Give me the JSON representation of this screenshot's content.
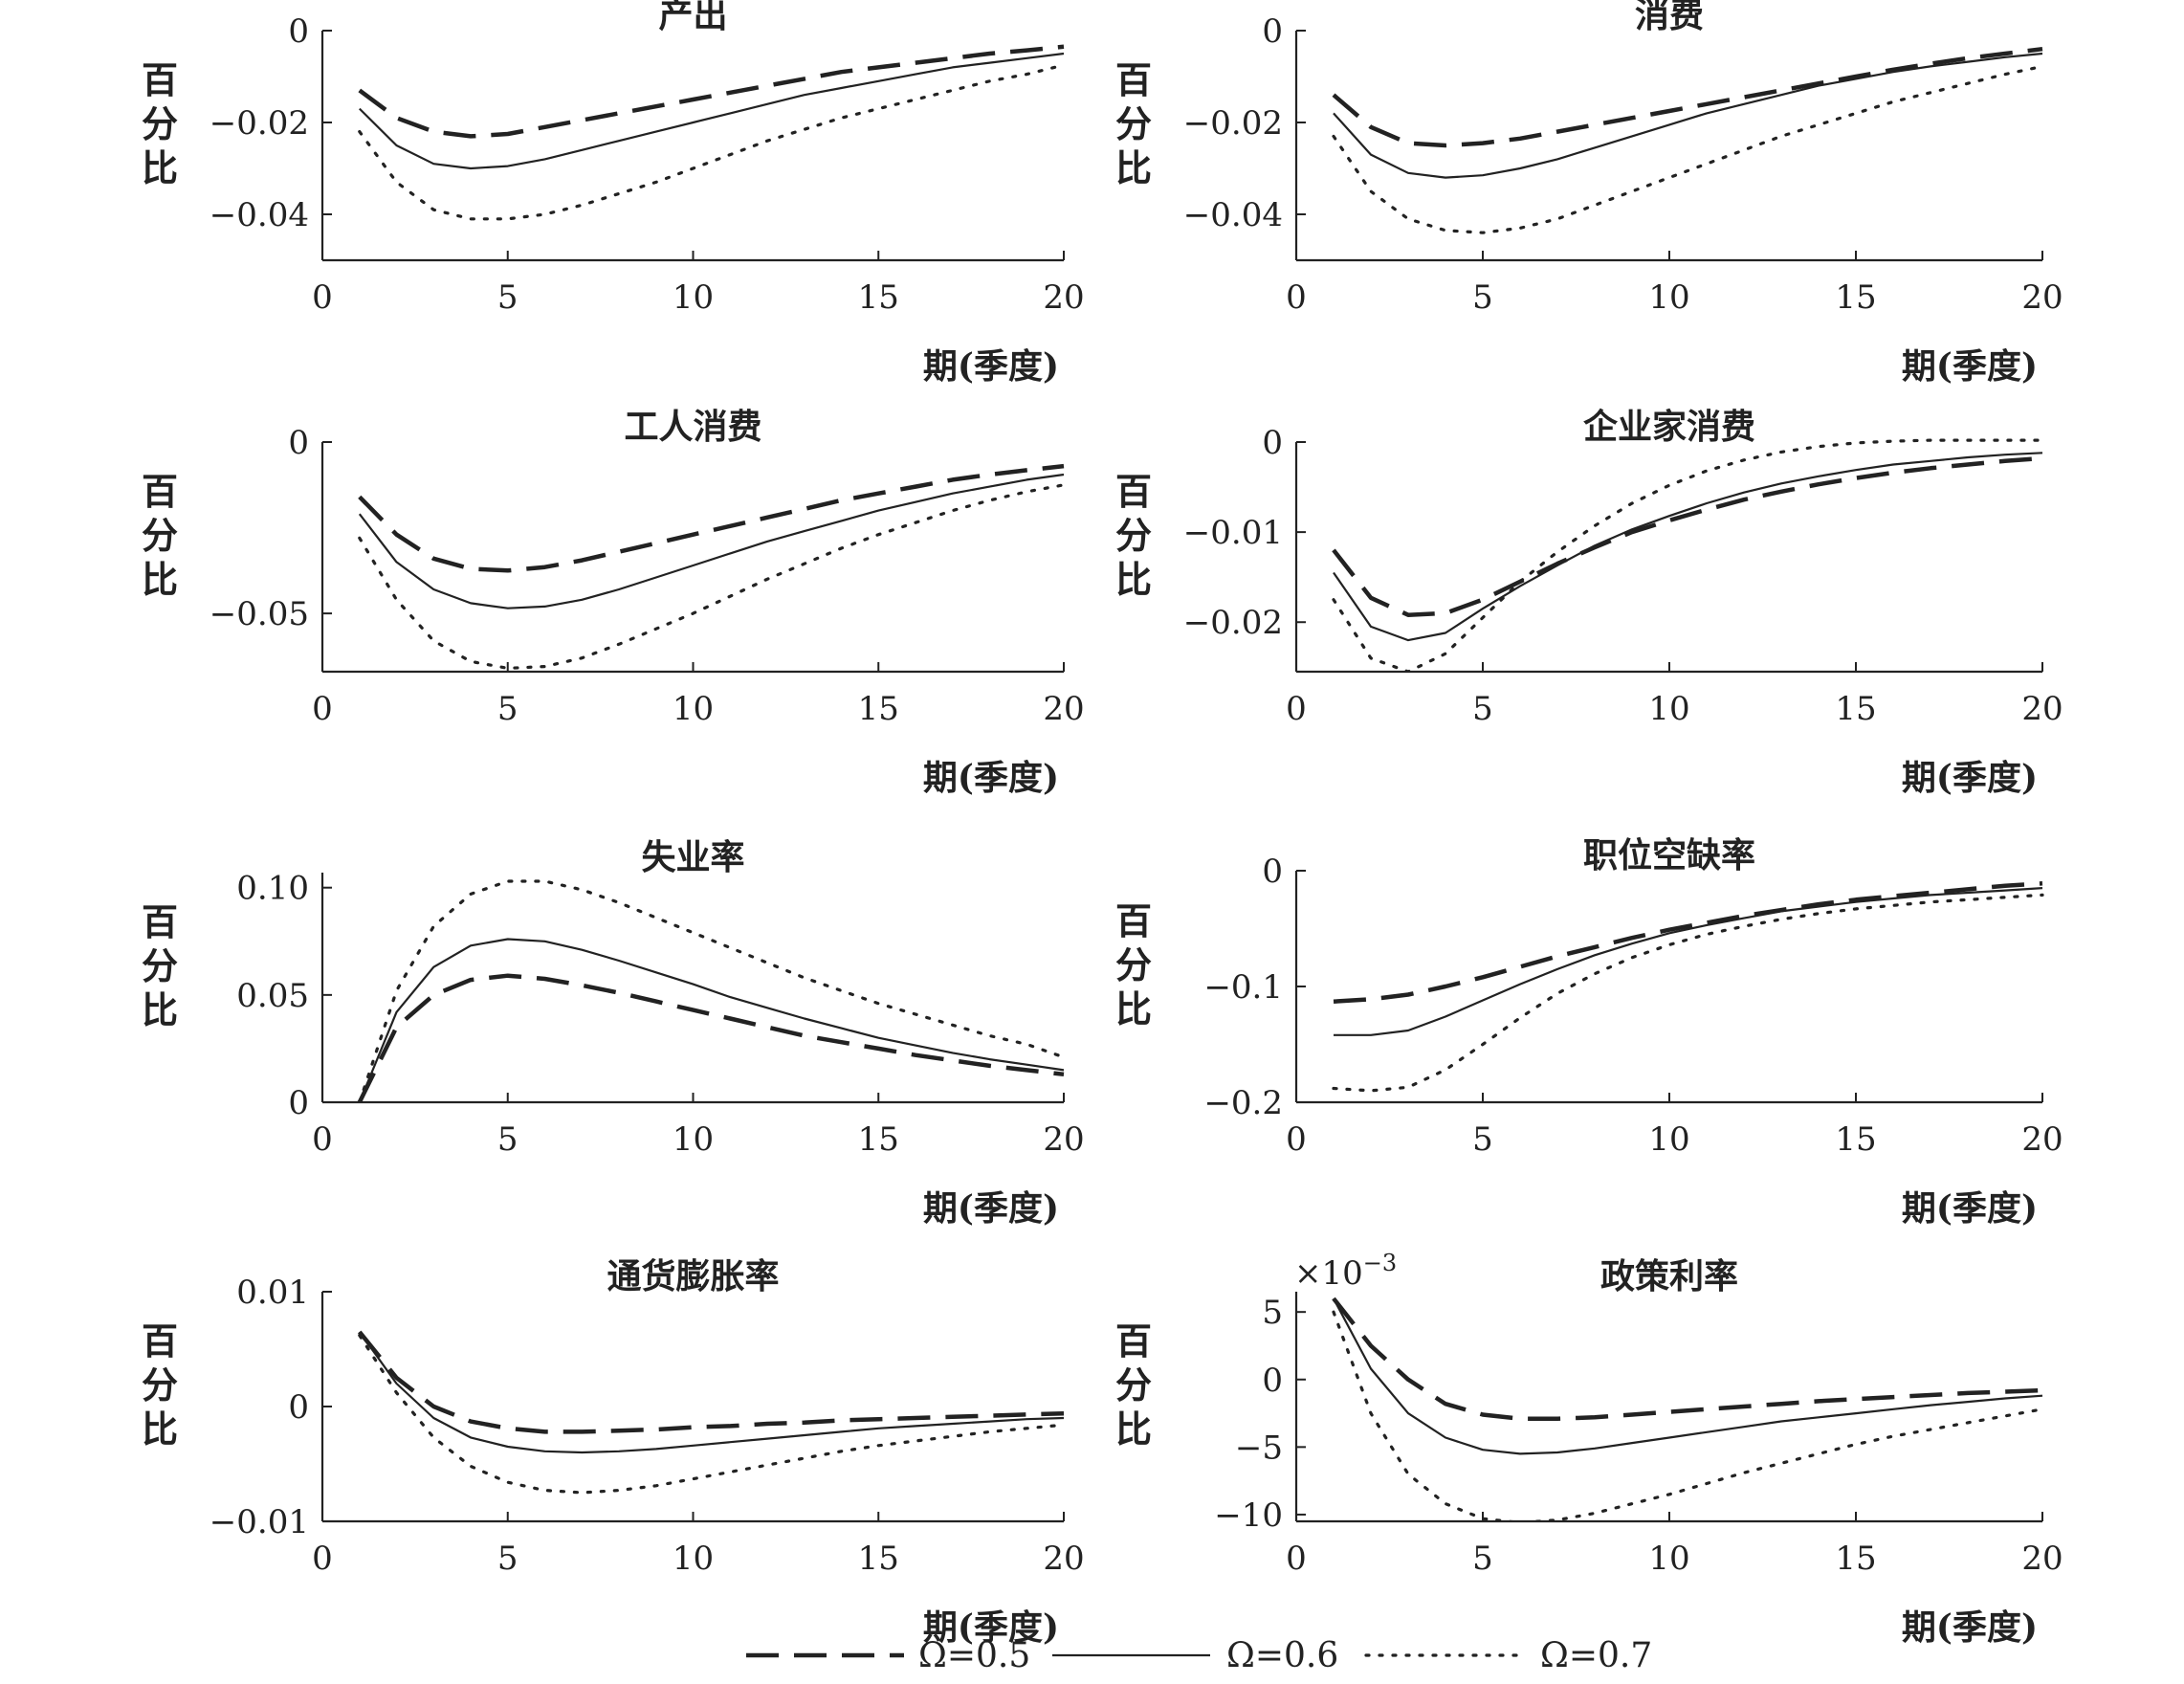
{
  "legend": [
    {
      "name": "Ω=0.5",
      "style": "dashed"
    },
    {
      "name": "Ω=0.6",
      "style": "solid"
    },
    {
      "name": "Ω=0.7",
      "style": "dotted"
    }
  ],
  "line_color": "#222222",
  "chart_data": [
    {
      "type": "line",
      "title": "产出",
      "ylabel": "百分比",
      "xlabel": "期(季度)",
      "xlim": [
        0,
        20
      ],
      "xticks": [
        0,
        5,
        10,
        15,
        20
      ],
      "xtick_labels": [
        "0",
        "5",
        "10",
        "15",
        "20"
      ],
      "ylim": [
        -0.05,
        0
      ],
      "yticks": [
        0,
        -0.02,
        -0.04
      ],
      "ytick_labels": [
        "0",
        "−0.02",
        "−0.04"
      ],
      "ymult": "",
      "x": [
        1,
        2,
        3,
        4,
        5,
        6,
        7,
        8,
        9,
        10,
        11,
        12,
        13,
        14,
        15,
        16,
        17,
        18,
        19,
        20
      ],
      "series": [
        {
          "name": "Ω=0.5",
          "values": [
            -0.013,
            -0.019,
            -0.022,
            -0.023,
            -0.0225,
            -0.021,
            -0.0195,
            -0.018,
            -0.0165,
            -0.015,
            -0.0135,
            -0.012,
            -0.0105,
            -0.009,
            -0.008,
            -0.007,
            -0.006,
            -0.005,
            -0.0043,
            -0.0035
          ]
        },
        {
          "name": "Ω=0.6",
          "values": [
            -0.017,
            -0.025,
            -0.029,
            -0.03,
            -0.0295,
            -0.028,
            -0.026,
            -0.024,
            -0.022,
            -0.02,
            -0.018,
            -0.016,
            -0.014,
            -0.0125,
            -0.011,
            -0.0095,
            -0.008,
            -0.007,
            -0.006,
            -0.005
          ]
        },
        {
          "name": "Ω=0.7",
          "values": [
            -0.022,
            -0.033,
            -0.039,
            -0.041,
            -0.041,
            -0.04,
            -0.038,
            -0.0355,
            -0.033,
            -0.03,
            -0.027,
            -0.024,
            -0.0215,
            -0.019,
            -0.017,
            -0.015,
            -0.013,
            -0.011,
            -0.0095,
            -0.0075
          ]
        }
      ]
    },
    {
      "type": "line",
      "title": "消费",
      "ylabel": "百分比",
      "xlabel": "期(季度)",
      "xlim": [
        0,
        20
      ],
      "xticks": [
        0,
        5,
        10,
        15,
        20
      ],
      "xtick_labels": [
        "0",
        "5",
        "10",
        "15",
        "20"
      ],
      "ylim": [
        -0.05,
        0
      ],
      "yticks": [
        0,
        -0.02,
        -0.04
      ],
      "ytick_labels": [
        "0",
        "−0.02",
        "−0.04"
      ],
      "ymult": "",
      "x": [
        1,
        2,
        3,
        4,
        5,
        6,
        7,
        8,
        9,
        10,
        11,
        12,
        13,
        14,
        15,
        16,
        17,
        18,
        19,
        20
      ],
      "series": [
        {
          "name": "Ω=0.5",
          "values": [
            -0.014,
            -0.021,
            -0.0245,
            -0.025,
            -0.0245,
            -0.0235,
            -0.022,
            -0.0205,
            -0.019,
            -0.0175,
            -0.016,
            -0.0145,
            -0.013,
            -0.0115,
            -0.01,
            -0.0085,
            -0.0072,
            -0.006,
            -0.005,
            -0.004
          ]
        },
        {
          "name": "Ω=0.6",
          "values": [
            -0.018,
            -0.027,
            -0.031,
            -0.032,
            -0.0315,
            -0.03,
            -0.028,
            -0.0255,
            -0.023,
            -0.0205,
            -0.018,
            -0.016,
            -0.014,
            -0.012,
            -0.0105,
            -0.009,
            -0.0078,
            -0.0068,
            -0.0058,
            -0.005
          ]
        },
        {
          "name": "Ω=0.7",
          "values": [
            -0.023,
            -0.035,
            -0.041,
            -0.0435,
            -0.044,
            -0.043,
            -0.041,
            -0.038,
            -0.035,
            -0.032,
            -0.029,
            -0.026,
            -0.023,
            -0.0205,
            -0.018,
            -0.0155,
            -0.0135,
            -0.0115,
            -0.0095,
            -0.0078
          ]
        }
      ]
    },
    {
      "type": "line",
      "title": "工人消费",
      "ylabel": "百分比",
      "xlabel": "期(季度)",
      "xlim": [
        0,
        20
      ],
      "xticks": [
        0,
        5,
        10,
        15,
        20
      ],
      "xtick_labels": [
        "0",
        "5",
        "10",
        "15",
        "20"
      ],
      "ylim": [
        -0.067,
        0
      ],
      "yticks": [
        0,
        -0.05
      ],
      "ytick_labels": [
        "0",
        "−0.05"
      ],
      "ymult": "",
      "x": [
        1,
        2,
        3,
        4,
        5,
        6,
        7,
        8,
        9,
        10,
        11,
        12,
        13,
        14,
        15,
        16,
        17,
        18,
        19,
        20
      ],
      "series": [
        {
          "name": "Ω=0.5",
          "values": [
            -0.016,
            -0.027,
            -0.034,
            -0.037,
            -0.0375,
            -0.0365,
            -0.0345,
            -0.032,
            -0.0295,
            -0.027,
            -0.0245,
            -0.022,
            -0.0195,
            -0.017,
            -0.015,
            -0.013,
            -0.011,
            -0.0095,
            -0.0082,
            -0.007
          ]
        },
        {
          "name": "Ω=0.6",
          "values": [
            -0.021,
            -0.035,
            -0.043,
            -0.047,
            -0.0485,
            -0.048,
            -0.046,
            -0.043,
            -0.0395,
            -0.036,
            -0.0325,
            -0.029,
            -0.026,
            -0.023,
            -0.02,
            -0.0175,
            -0.015,
            -0.013,
            -0.011,
            -0.0095
          ]
        },
        {
          "name": "Ω=0.7",
          "values": [
            -0.028,
            -0.046,
            -0.058,
            -0.064,
            -0.066,
            -0.0655,
            -0.063,
            -0.059,
            -0.0545,
            -0.05,
            -0.045,
            -0.04,
            -0.0355,
            -0.031,
            -0.027,
            -0.0235,
            -0.02,
            -0.017,
            -0.0145,
            -0.0125
          ]
        }
      ]
    },
    {
      "type": "line",
      "title": "企业家消费",
      "ylabel": "百分比",
      "xlabel": "期(季度)",
      "xlim": [
        0,
        20
      ],
      "xticks": [
        0,
        5,
        10,
        15,
        20
      ],
      "xtick_labels": [
        "0",
        "5",
        "10",
        "15",
        "20"
      ],
      "ylim": [
        -0.0255,
        0
      ],
      "yticks": [
        0,
        -0.01,
        -0.02
      ],
      "ytick_labels": [
        "0",
        "−0.01",
        "−0.02"
      ],
      "ymult": "",
      "x": [
        1,
        2,
        3,
        4,
        5,
        6,
        7,
        8,
        9,
        10,
        11,
        12,
        13,
        14,
        15,
        16,
        17,
        18,
        19,
        20
      ],
      "series": [
        {
          "name": "Ω=0.5",
          "values": [
            -0.012,
            -0.0173,
            -0.0192,
            -0.019,
            -0.0175,
            -0.0155,
            -0.0135,
            -0.0117,
            -0.01,
            -0.0087,
            -0.0075,
            -0.0064,
            -0.0055,
            -0.0047,
            -0.004,
            -0.0034,
            -0.0029,
            -0.0025,
            -0.0021,
            -0.0018
          ]
        },
        {
          "name": "Ω=0.6",
          "values": [
            -0.0145,
            -0.0205,
            -0.022,
            -0.0212,
            -0.0185,
            -0.016,
            -0.0137,
            -0.0115,
            -0.0097,
            -0.0082,
            -0.0068,
            -0.0056,
            -0.0046,
            -0.0038,
            -0.0031,
            -0.0025,
            -0.0021,
            -0.0017,
            -0.0014,
            -0.0012
          ]
        },
        {
          "name": "Ω=0.7",
          "values": [
            -0.0175,
            -0.024,
            -0.0255,
            -0.0235,
            -0.0195,
            -0.0155,
            -0.0122,
            -0.0093,
            -0.0068,
            -0.0048,
            -0.0032,
            -0.002,
            -0.0011,
            -0.0005,
            -0.0001,
            0.0001,
            0.0002,
            0.0002,
            0.0002,
            0.0002
          ]
        }
      ]
    },
    {
      "type": "line",
      "title": "失业率",
      "ylabel": "百分比",
      "xlabel": "期(季度)",
      "xlim": [
        0,
        20
      ],
      "xticks": [
        0,
        5,
        10,
        15,
        20
      ],
      "xtick_labels": [
        "0",
        "5",
        "10",
        "15",
        "20"
      ],
      "ylim": [
        0,
        0.107
      ],
      "yticks": [
        0,
        0.05,
        0.1
      ],
      "ytick_labels": [
        "0",
        "0.05",
        "0.10"
      ],
      "ymult": "",
      "x": [
        1,
        2,
        3,
        4,
        5,
        6,
        7,
        8,
        9,
        10,
        11,
        12,
        13,
        14,
        15,
        16,
        17,
        18,
        19,
        20
      ],
      "series": [
        {
          "name": "Ω=0.5",
          "values": [
            0,
            0.035,
            0.05,
            0.057,
            0.059,
            0.0575,
            0.0545,
            0.051,
            0.047,
            0.043,
            0.039,
            0.035,
            0.031,
            0.028,
            0.025,
            0.022,
            0.0195,
            0.017,
            0.015,
            0.013
          ]
        },
        {
          "name": "Ω=0.6",
          "values": [
            0,
            0.042,
            0.063,
            0.073,
            0.076,
            0.075,
            0.071,
            0.066,
            0.0605,
            0.055,
            0.049,
            0.044,
            0.039,
            0.0345,
            0.03,
            0.0265,
            0.023,
            0.02,
            0.0175,
            0.015
          ]
        },
        {
          "name": "Ω=0.7",
          "values": [
            0,
            0.052,
            0.082,
            0.097,
            0.103,
            0.103,
            0.099,
            0.093,
            0.086,
            0.079,
            0.072,
            0.065,
            0.058,
            0.052,
            0.046,
            0.041,
            0.036,
            0.031,
            0.027,
            0.021
          ]
        }
      ]
    },
    {
      "type": "line",
      "title": "职位空缺率",
      "ylabel": "百分比",
      "xlabel": "期(季度)",
      "xlim": [
        0,
        20
      ],
      "xticks": [
        0,
        5,
        10,
        15,
        20
      ],
      "xtick_labels": [
        "0",
        "5",
        "10",
        "15",
        "20"
      ],
      "ylim": [
        -0.2,
        0
      ],
      "yticks": [
        0,
        -0.1,
        -0.2
      ],
      "ytick_labels": [
        "0",
        "−0.1",
        "−0.2"
      ],
      "ymult": "",
      "x": [
        1,
        2,
        3,
        4,
        5,
        6,
        7,
        8,
        9,
        10,
        11,
        12,
        13,
        14,
        15,
        16,
        17,
        18,
        19,
        20
      ],
      "series": [
        {
          "name": "Ω=0.5",
          "values": [
            -0.113,
            -0.111,
            -0.107,
            -0.1,
            -0.092,
            -0.083,
            -0.074,
            -0.066,
            -0.058,
            -0.051,
            -0.045,
            -0.039,
            -0.034,
            -0.029,
            -0.025,
            -0.022,
            -0.019,
            -0.016,
            -0.013,
            -0.011
          ]
        },
        {
          "name": "Ω=0.6",
          "values": [
            -0.142,
            -0.142,
            -0.138,
            -0.126,
            -0.112,
            -0.098,
            -0.085,
            -0.073,
            -0.063,
            -0.054,
            -0.047,
            -0.041,
            -0.035,
            -0.031,
            -0.027,
            -0.024,
            -0.021,
            -0.019,
            -0.017,
            -0.015
          ]
        },
        {
          "name": "Ω=0.7",
          "values": [
            -0.188,
            -0.19,
            -0.187,
            -0.172,
            -0.15,
            -0.127,
            -0.106,
            -0.089,
            -0.075,
            -0.064,
            -0.055,
            -0.048,
            -0.042,
            -0.037,
            -0.033,
            -0.03,
            -0.027,
            -0.025,
            -0.023,
            -0.021
          ]
        }
      ]
    },
    {
      "type": "line",
      "title": "通货膨胀率",
      "ylabel": "百分比",
      "xlabel": "期(季度)",
      "xlim": [
        0,
        20
      ],
      "xticks": [
        0,
        5,
        10,
        15,
        20
      ],
      "xtick_labels": [
        "0",
        "5",
        "10",
        "15",
        "20"
      ],
      "ylim": [
        -0.01,
        0.01
      ],
      "yticks": [
        0.01,
        0,
        -0.01
      ],
      "ytick_labels": [
        "0.01",
        "0",
        "−0.01"
      ],
      "ymult": "",
      "x": [
        1,
        2,
        3,
        4,
        5,
        6,
        7,
        8,
        9,
        10,
        11,
        12,
        13,
        14,
        15,
        16,
        17,
        18,
        19,
        20
      ],
      "series": [
        {
          "name": "Ω=0.5",
          "values": [
            0.0065,
            0.0025,
            0,
            -0.0013,
            -0.0019,
            -0.0022,
            -0.0022,
            -0.0021,
            -0.002,
            -0.0018,
            -0.0017,
            -0.0015,
            -0.0014,
            -0.0012,
            -0.0011,
            -0.001,
            -0.0009,
            -0.0008,
            -0.0007,
            -0.0006
          ]
        },
        {
          "name": "Ω=0.6",
          "values": [
            0.0065,
            0.002,
            -0.001,
            -0.0027,
            -0.0035,
            -0.0039,
            -0.004,
            -0.0039,
            -0.0037,
            -0.0034,
            -0.0031,
            -0.0028,
            -0.0025,
            -0.0022,
            -0.0019,
            -0.0017,
            -0.0015,
            -0.0013,
            -0.0011,
            -0.001
          ]
        },
        {
          "name": "Ω=0.7",
          "values": [
            0.0062,
            0.0012,
            -0.0027,
            -0.0052,
            -0.0066,
            -0.0073,
            -0.0075,
            -0.0073,
            -0.0069,
            -0.0063,
            -0.0057,
            -0.0051,
            -0.0045,
            -0.0039,
            -0.0034,
            -0.003,
            -0.0026,
            -0.0022,
            -0.0019,
            -0.0016
          ]
        }
      ]
    },
    {
      "type": "line",
      "title": "政策利率",
      "ylabel": "百分比",
      "xlabel": "期(季度)",
      "xlim": [
        0,
        20
      ],
      "xticks": [
        0,
        5,
        10,
        15,
        20
      ],
      "xtick_labels": [
        "0",
        "5",
        "10",
        "15",
        "20"
      ],
      "ylim": [
        -10.5,
        6.5
      ],
      "yticks": [
        5,
        0,
        -5,
        -10
      ],
      "ytick_labels": [
        "5",
        "0",
        "−5",
        "−10"
      ],
      "ymult": "×10",
      "ymult_exp": "−3",
      "x": [
        1,
        2,
        3,
        4,
        5,
        6,
        7,
        8,
        9,
        10,
        11,
        12,
        13,
        14,
        15,
        16,
        17,
        18,
        19,
        20
      ],
      "series": [
        {
          "name": "Ω=0.5",
          "values": [
            6,
            2.5,
            0,
            -1.8,
            -2.6,
            -2.9,
            -2.9,
            -2.8,
            -2.6,
            -2.4,
            -2.2,
            -2.0,
            -1.8,
            -1.6,
            -1.45,
            -1.3,
            -1.15,
            -1.0,
            -0.9,
            -0.8
          ]
        },
        {
          "name": "Ω=0.6",
          "values": [
            6,
            0.8,
            -2.5,
            -4.3,
            -5.2,
            -5.5,
            -5.4,
            -5.1,
            -4.7,
            -4.3,
            -3.9,
            -3.5,
            -3.1,
            -2.8,
            -2.5,
            -2.2,
            -1.9,
            -1.65,
            -1.4,
            -1.2
          ]
        },
        {
          "name": "Ω=0.7",
          "values": [
            5,
            -2.5,
            -7.0,
            -9.2,
            -10.3,
            -10.6,
            -10.4,
            -9.9,
            -9.2,
            -8.5,
            -7.7,
            -6.9,
            -6.2,
            -5.5,
            -4.8,
            -4.2,
            -3.7,
            -3.2,
            -2.7,
            -2.2
          ]
        }
      ]
    }
  ]
}
